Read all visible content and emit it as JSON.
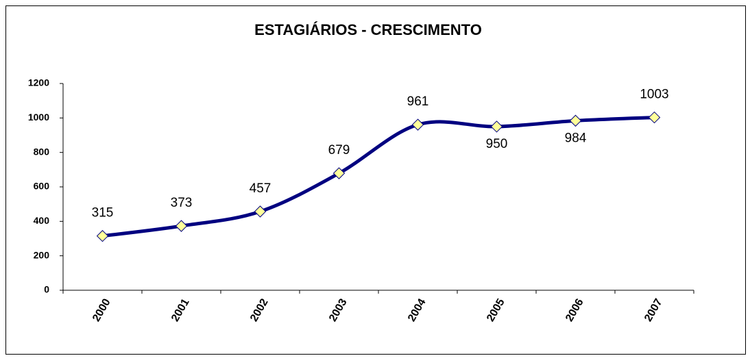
{
  "chart_data": {
    "type": "line",
    "title": "ESTAGIÁRIOS - CRESCIMENTO",
    "categories": [
      "2000",
      "2001",
      "2002",
      "2003",
      "2004",
      "2005",
      "2006",
      "2007"
    ],
    "values": [
      315,
      373,
      457,
      679,
      961,
      950,
      984,
      1003
    ],
    "color": "#000080",
    "marker_color": "#ffff99",
    "ylim": [
      0,
      1200
    ],
    "yticks": [
      0,
      200,
      400,
      600,
      800,
      1000,
      1200
    ],
    "grid": false,
    "smooth": true
  }
}
